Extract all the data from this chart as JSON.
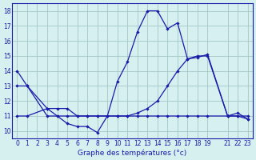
{
  "background_color": "#d6f0f0",
  "grid_color": "#aacccc",
  "line_color": "#1a1aaa",
  "xlabel": "Graphe des températures (°c)",
  "ylim": [
    9.5,
    18.5
  ],
  "yticks": [
    10,
    11,
    12,
    13,
    14,
    15,
    16,
    17,
    18
  ],
  "xlim": [
    -0.5,
    23.5
  ],
  "xticks": [
    0,
    1,
    2,
    3,
    4,
    5,
    6,
    7,
    8,
    9,
    10,
    11,
    12,
    13,
    14,
    15,
    16,
    17,
    18,
    19,
    21,
    22,
    23
  ],
  "xtick_labels": [
    "0",
    "1",
    "2",
    "3",
    "4",
    "5",
    "6",
    "7",
    "8",
    "9",
    "10",
    "11",
    "12",
    "13",
    "14",
    "15",
    "16",
    "17",
    "18",
    "19",
    "21",
    "22",
    "23"
  ],
  "series1": {
    "x": [
      0,
      1,
      3,
      4,
      5,
      6,
      7,
      8,
      9,
      10,
      11,
      12,
      13,
      14,
      15,
      16,
      17,
      18,
      19,
      21,
      22,
      23
    ],
    "y": [
      14,
      13,
      11.5,
      11,
      10.5,
      10.3,
      10.3,
      9.9,
      11.0,
      13.3,
      14.6,
      16.6,
      18.0,
      18.0,
      16.8,
      17.2,
      14.8,
      14.9,
      15.1,
      11.0,
      11.2,
      10.8
    ]
  },
  "series2": {
    "x": [
      0,
      1,
      3,
      4,
      5,
      6,
      7,
      8,
      9,
      10,
      11,
      12,
      13,
      14,
      15,
      16,
      17,
      18,
      19,
      21,
      22,
      23
    ],
    "y": [
      13.0,
      13.0,
      11.0,
      11.0,
      11.0,
      11.0,
      11.0,
      11.0,
      11.0,
      11.0,
      11.0,
      11.2,
      11.5,
      12.0,
      13.0,
      14.0,
      14.8,
      15.0,
      15.0,
      11.0,
      11.0,
      11.0
    ]
  },
  "series3": {
    "x": [
      0,
      1,
      3,
      4,
      5,
      6,
      7,
      8,
      9,
      10,
      11,
      12,
      13,
      14,
      15,
      16,
      17,
      18,
      19,
      21,
      22,
      23
    ],
    "y": [
      11.0,
      11.0,
      11.5,
      11.5,
      11.5,
      11.0,
      11.0,
      11.0,
      11.0,
      11.0,
      11.0,
      11.0,
      11.0,
      11.0,
      11.0,
      11.0,
      11.0,
      11.0,
      11.0,
      11.0,
      11.0,
      10.8
    ]
  }
}
